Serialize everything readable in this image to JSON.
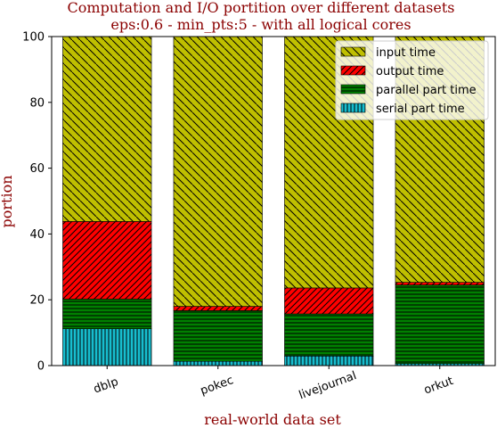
{
  "chart_data": {
    "type": "bar",
    "stacked": true,
    "title": "Computation and I/O portition over different datasets",
    "subtitle": "eps:0.6 - min_pts:5 - with all logical cores",
    "xlabel": "real-world data set",
    "ylabel": "portion",
    "ylim": [
      0,
      100
    ],
    "yticks": [
      0,
      20,
      40,
      60,
      80,
      100
    ],
    "categories": [
      "dblp",
      "pokec",
      "livejournal",
      "orkut"
    ],
    "series": [
      {
        "name": "serial part time",
        "values": [
          11.2,
          1.3,
          2.9,
          0.6
        ],
        "color": "#17becf",
        "hatch": "vertical"
      },
      {
        "name": "parallel part time",
        "values": [
          9.0,
          15.4,
          12.8,
          23.9
        ],
        "color": "#008000",
        "hatch": "horizontal"
      },
      {
        "name": "output time",
        "values": [
          23.6,
          1.3,
          7.9,
          0.8
        ],
        "color": "#ff0000",
        "hatch": "diag-up"
      },
      {
        "name": "input time",
        "values": [
          56.2,
          82.0,
          76.4,
          74.7
        ],
        "color": "#bfbf00",
        "hatch": "diag-down"
      }
    ],
    "legend_order": [
      "input time",
      "output time",
      "parallel part time",
      "serial part time"
    ],
    "legend_position": "top-right",
    "grid": false
  }
}
